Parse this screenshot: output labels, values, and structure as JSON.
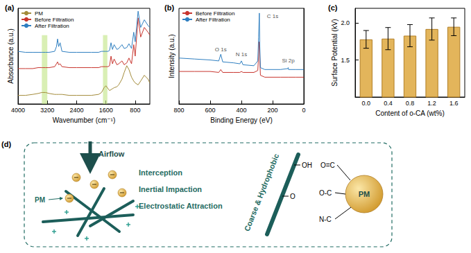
{
  "chart_data": [
    {
      "type": "line",
      "title": "(a)",
      "x_label": "Wavenumber (cm⁻¹)",
      "y_label": "Absorbance (a.u.)",
      "x": [
        4000,
        3800,
        3600,
        3450,
        3350,
        3300,
        3250,
        3150,
        3000,
        2950,
        2920,
        2890,
        2850,
        2800,
        2600,
        2400,
        2200,
        2000,
        1800,
        1720,
        1650,
        1600,
        1540,
        1500,
        1460,
        1420,
        1375,
        1300,
        1250,
        1160,
        1100,
        1030,
        970,
        900,
        840,
        800,
        720,
        650,
        550,
        450,
        400
      ],
      "series": [
        {
          "name": "PM",
          "color": "#a38b3a",
          "values": [
            0.09,
            0.09,
            0.1,
            0.11,
            0.12,
            0.12,
            0.12,
            0.11,
            0.1,
            0.1,
            0.1,
            0.1,
            0.1,
            0.1,
            0.09,
            0.09,
            0.09,
            0.09,
            0.1,
            0.12,
            0.17,
            0.19,
            0.16,
            0.14,
            0.15,
            0.16,
            0.17,
            0.18,
            0.2,
            0.26,
            0.33,
            0.4,
            0.36,
            0.28,
            0.24,
            0.22,
            0.2,
            0.24,
            0.3,
            0.26,
            0.22
          ]
        },
        {
          "name": "Before Filtration",
          "color": "#c8352e",
          "values": [
            0.37,
            0.37,
            0.37,
            0.38,
            0.38,
            0.38,
            0.38,
            0.38,
            0.39,
            0.42,
            0.44,
            0.41,
            0.42,
            0.39,
            0.38,
            0.38,
            0.38,
            0.38,
            0.38,
            0.39,
            0.39,
            0.39,
            0.39,
            0.4,
            0.5,
            0.42,
            0.47,
            0.41,
            0.42,
            0.45,
            0.41,
            0.43,
            0.48,
            0.42,
            0.62,
            0.5,
            0.9,
            0.7,
            0.8,
            0.75,
            0.72
          ]
        },
        {
          "name": "After Filtration",
          "color": "#2f7fc1",
          "values": [
            0.55,
            0.54,
            0.54,
            0.54,
            0.54,
            0.54,
            0.54,
            0.54,
            0.55,
            0.6,
            0.68,
            0.6,
            0.64,
            0.55,
            0.54,
            0.54,
            0.54,
            0.54,
            0.54,
            0.55,
            0.55,
            0.55,
            0.55,
            0.56,
            0.64,
            0.57,
            0.62,
            0.57,
            0.58,
            0.62,
            0.58,
            0.59,
            0.63,
            0.58,
            0.75,
            0.65,
            0.97,
            0.8,
            0.88,
            0.82,
            0.8
          ]
        }
      ],
      "xlim": [
        4000,
        400
      ],
      "xticks": [
        4000,
        3200,
        2400,
        1600,
        800
      ],
      "ylim": [
        0,
        1
      ],
      "tick_labels": "x",
      "legend": "upper left",
      "bands": [
        {
          "x": [
            3350,
            3200
          ],
          "y": [
            0,
            0.72
          ]
        },
        {
          "x": [
            1680,
            1560
          ],
          "y": [
            0,
            0.72
          ]
        }
      ]
    },
    {
      "type": "line",
      "title": "(b)",
      "x_label": "Binding Energy (eV)",
      "y_label": "Intensity (a.u.)",
      "x": [
        800,
        700,
        600,
        545,
        532,
        520,
        450,
        410,
        400,
        390,
        320,
        295,
        290,
        285,
        282,
        278,
        250,
        200,
        150,
        102,
        100,
        98,
        50,
        0
      ],
      "series": [
        {
          "name": "Before Filtration",
          "color": "#c8352e",
          "values": [
            0.34,
            0.34,
            0.34,
            0.33,
            0.36,
            0.33,
            0.33,
            0.33,
            0.34,
            0.33,
            0.33,
            0.35,
            0.5,
            0.65,
            0.45,
            0.3,
            0.28,
            0.28,
            0.28,
            0.28,
            0.28,
            0.28,
            0.28,
            0.28
          ]
        },
        {
          "name": "After Filtration",
          "color": "#2f7fc1",
          "values": [
            0.48,
            0.47,
            0.46,
            0.45,
            0.52,
            0.44,
            0.43,
            0.42,
            0.45,
            0.41,
            0.4,
            0.45,
            0.7,
            0.95,
            0.6,
            0.38,
            0.36,
            0.36,
            0.36,
            0.37,
            0.38,
            0.36,
            0.36,
            0.36
          ]
        }
      ],
      "xlim": [
        800,
        0
      ],
      "xticks": [
        800,
        600,
        400,
        200,
        0
      ],
      "ylim": [
        0,
        1
      ],
      "tick_labels": "x",
      "legend": "upper left",
      "annotations": [
        {
          "text": "O 1s",
          "x": 532,
          "y": 0.57
        },
        {
          "text": "N 1s",
          "x": 400,
          "y": 0.52
        },
        {
          "text": "C 1s",
          "x": 200,
          "y": 0.92
        },
        {
          "text": "Si 2p",
          "x": 100,
          "y": 0.45
        }
      ]
    },
    {
      "type": "bar",
      "title": "(c)",
      "x_label": "Content of o-CA (wt%)",
      "y_label": "Surface Potential (kV)",
      "categories": [
        "0.0",
        "0.4",
        "0.8",
        "1.2",
        "1.6"
      ],
      "values": [
        1.78,
        1.79,
        1.83,
        1.92,
        1.95
      ],
      "errors": [
        0.12,
        0.15,
        0.15,
        0.15,
        0.12
      ],
      "color": "#e3b55b",
      "ylim": [
        1.0,
        2.2
      ],
      "yticks": [
        1.5,
        {
          "value": 2,
          "label": "2.0"
        }
      ]
    }
  ],
  "diagram": {
    "title": "(d)",
    "airflow": "Airflow",
    "particle": "PM",
    "mechanisms": [
      "Interception",
      "Inertial Impaction",
      "Electrostatic Attraction"
    ],
    "fiber_label": "Coarse & Hydrophobic",
    "fiber_groups": [
      "OH",
      "O"
    ],
    "bonds": [
      "O=C",
      "O-C",
      "N-C"
    ],
    "particle_label": "PM"
  }
}
